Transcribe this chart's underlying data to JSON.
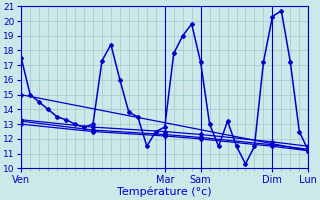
{
  "xlabel": "Température (°c)",
  "bg_color": "#cce8e8",
  "line_color": "#0000cc",
  "grid_color": "#99cccc",
  "ylim": [
    10,
    21
  ],
  "yticks": [
    10,
    11,
    12,
    13,
    14,
    15,
    16,
    17,
    18,
    19,
    20,
    21
  ],
  "xlim": [
    0,
    192
  ],
  "day_labels": [
    "Ven",
    "Mar",
    "Sam",
    "Dim",
    "Lun"
  ],
  "day_positions": [
    0,
    96,
    120,
    168,
    192
  ],
  "main_x": [
    0,
    6,
    12,
    18,
    24,
    30,
    36,
    42,
    48,
    54,
    60,
    66,
    72,
    78,
    84,
    90,
    96,
    102,
    108,
    114,
    120,
    126,
    132,
    138,
    144,
    150,
    156,
    162,
    168,
    174,
    180,
    186,
    192
  ],
  "main_y": [
    17.5,
    15.0,
    14.5,
    14.0,
    13.5,
    13.3,
    13.0,
    12.8,
    13.0,
    17.3,
    18.4,
    16.0,
    13.8,
    13.5,
    11.5,
    12.5,
    12.8,
    17.8,
    19.0,
    19.8,
    17.2,
    13.0,
    11.5,
    13.2,
    11.5,
    10.3,
    11.5,
    17.2,
    20.3,
    20.7,
    17.2,
    12.5,
    11.2
  ],
  "trend1_x": [
    0,
    192
  ],
  "trend1_y": [
    15.0,
    11.2
  ],
  "trend2_x": [
    0,
    48,
    96,
    120,
    168,
    192
  ],
  "trend2_y": [
    13.3,
    12.8,
    12.5,
    12.3,
    11.8,
    11.5
  ],
  "trend3_x": [
    0,
    48,
    96,
    120,
    168,
    192
  ],
  "trend3_y": [
    13.0,
    12.5,
    12.2,
    12.0,
    11.5,
    11.2
  ],
  "trend4_x": [
    0,
    48,
    96,
    120,
    168,
    192
  ],
  "trend4_y": [
    13.2,
    12.6,
    12.3,
    12.1,
    11.6,
    11.3
  ],
  "xtick_minor_step": 6
}
